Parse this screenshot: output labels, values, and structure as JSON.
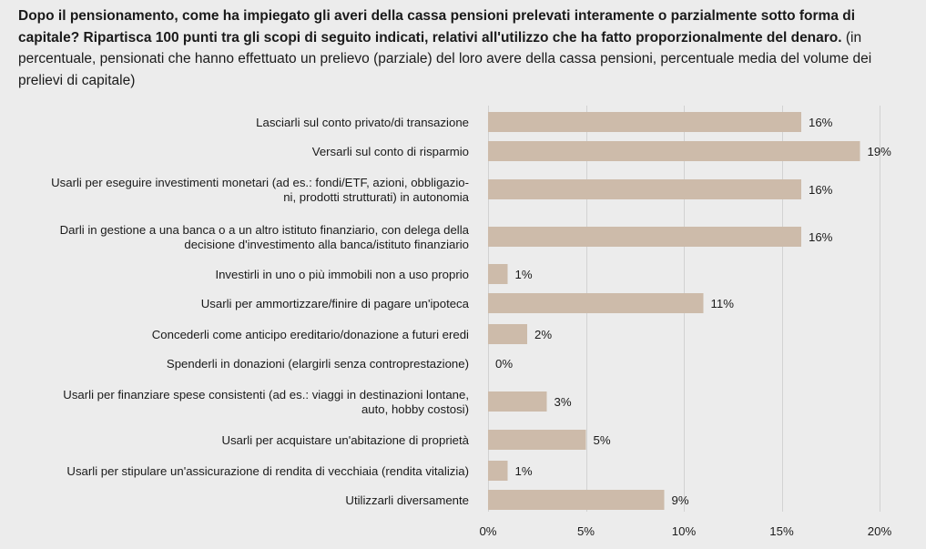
{
  "title": {
    "bold": "Dopo il pensionamento, come ha impiegato gli averi della cassa pensioni prelevati interamente o parzialmente sotto forma di capitale? Ripartisca 100 punti tra gli scopi di seguito indicati, relativi all'utilizzo che ha fatto proporzionalmente del denaro.",
    "normal": " (in percentuale, pensionati che hanno effettuato un prelievo (parziale) del loro avere della cassa pensioni, percentuale media del volume dei prelievi di capitale)"
  },
  "colors": {
    "bar": "#cdbbaa",
    "grid": "#d2d2d2",
    "background": "#ececec",
    "text": "#1a1a1a"
  },
  "chart_data": {
    "type": "bar",
    "orientation": "horizontal",
    "title": "Dopo il pensionamento, come ha impiegato gli averi della cassa pensioni prelevati interamente o parzialmente sotto forma di capitale? Ripartisca 100 punti tra gli scopi di seguito indicati, relativi all'utilizzo che ha fatto proporzionalmente del denaro. (in percentuale, pensionati che hanno effettuato un prelievo (parziale) del loro avere della cassa pensioni, percentuale media del volume dei prelievi di capitale)",
    "categories": [
      [
        "Lasciarli sul conto privato/di transazione"
      ],
      [
        "Versarli sul conto di risparmio"
      ],
      [
        "Usarli per eseguire investimenti monetari (ad es.: fondi/ETF, azioni, obbligazio-",
        "ni, prodotti strutturati) in autonomia"
      ],
      [
        "Darli in gestione a una banca o a un altro istituto finanziario, con delega della",
        "decisione d'investimento alla banca/istituto finanziario"
      ],
      [
        "Investirli in uno o più immobili non a uso proprio"
      ],
      [
        "Usarli per ammortizzare/finire di pagare un'ipoteca"
      ],
      [
        "Concederli come anticipo ereditario/donazione a futuri eredi"
      ],
      [
        "Spenderli in donazioni (elargirli senza controprestazione)"
      ],
      [
        "Usarli per finanziare spese consistenti (ad es.: viaggi in destinazioni lontane,",
        "auto, hobby costosi)"
      ],
      [
        "Usarli per acquistare un'abitazione di proprietà"
      ],
      [
        "Usarli per stipulare un'assicurazione di rendita di vecchiaia (rendita vitalizia)"
      ],
      [
        "Utilizzarli diversamente"
      ]
    ],
    "values": [
      16,
      19,
      16,
      16,
      1,
      11,
      2,
      0,
      3,
      5,
      1,
      9
    ],
    "value_labels": [
      "16%",
      "19%",
      "16%",
      "16%",
      "1%",
      "11%",
      "2%",
      "0%",
      "3%",
      "5%",
      "1%",
      "9%"
    ],
    "xlabel": "",
    "ylabel": "",
    "xlim": [
      0,
      20
    ],
    "xticks": [
      0,
      5,
      10,
      15,
      20
    ],
    "xtick_labels": [
      "0%",
      "5%",
      "10%",
      "15%",
      "20%"
    ],
    "grid": true,
    "legend": "none"
  }
}
